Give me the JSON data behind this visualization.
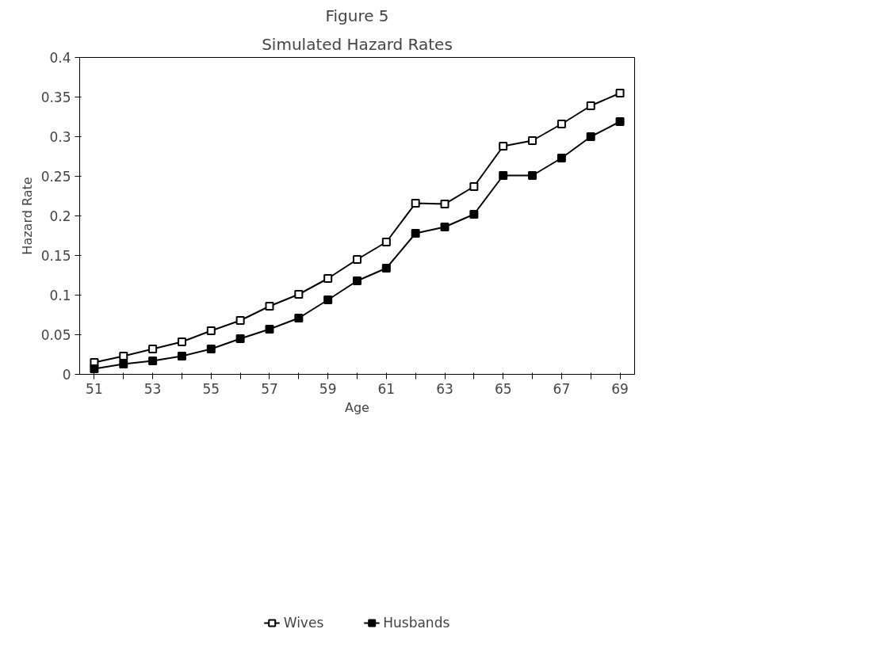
{
  "chart_data": {
    "type": "line",
    "title": "Figure 5",
    "subtitle": "Simulated Hazard Rates",
    "xlabel": "Age",
    "ylabel": "Hazard Rate",
    "x": [
      51,
      52,
      53,
      54,
      55,
      56,
      57,
      58,
      59,
      60,
      61,
      62,
      63,
      64,
      65,
      66,
      67,
      68,
      69
    ],
    "series": [
      {
        "name": "Wives",
        "color": "#000000",
        "values": [
          0.015,
          0.023,
          0.032,
          0.041,
          0.055,
          0.068,
          0.086,
          0.101,
          0.121,
          0.145,
          0.167,
          0.216,
          0.215,
          0.237,
          0.288,
          0.295,
          0.316,
          0.339,
          0.355
        ]
      },
      {
        "name": "Husbands",
        "color": "#000000",
        "values": [
          0.007,
          0.013,
          0.017,
          0.023,
          0.032,
          0.045,
          0.057,
          0.071,
          0.094,
          0.118,
          0.134,
          0.178,
          0.186,
          0.202,
          0.251,
          0.251,
          0.273,
          0.3,
          0.319
        ]
      }
    ],
    "xlim": [
      50.5,
      69.5
    ],
    "xticks": [
      51,
      {
        "value": 52,
        "label": null
      },
      53,
      {
        "value": 54,
        "label": null
      },
      55,
      {
        "value": 56,
        "label": null
      },
      57,
      {
        "value": 58,
        "label": null
      },
      59,
      {
        "value": 60,
        "label": null
      },
      61,
      {
        "value": 62,
        "label": null
      },
      63,
      {
        "value": 64,
        "label": null
      },
      65,
      {
        "value": 66,
        "label": null
      },
      67,
      {
        "value": 68,
        "label": null
      },
      69
    ],
    "ylim": [
      0,
      0.4
    ],
    "yticks": [
      0,
      0.05,
      0.1,
      0.15,
      0.2,
      0.25,
      0.3,
      0.35,
      0.4
    ],
    "grid": false,
    "legend": "bottom",
    "marker": "square",
    "line_style": "solid"
  }
}
